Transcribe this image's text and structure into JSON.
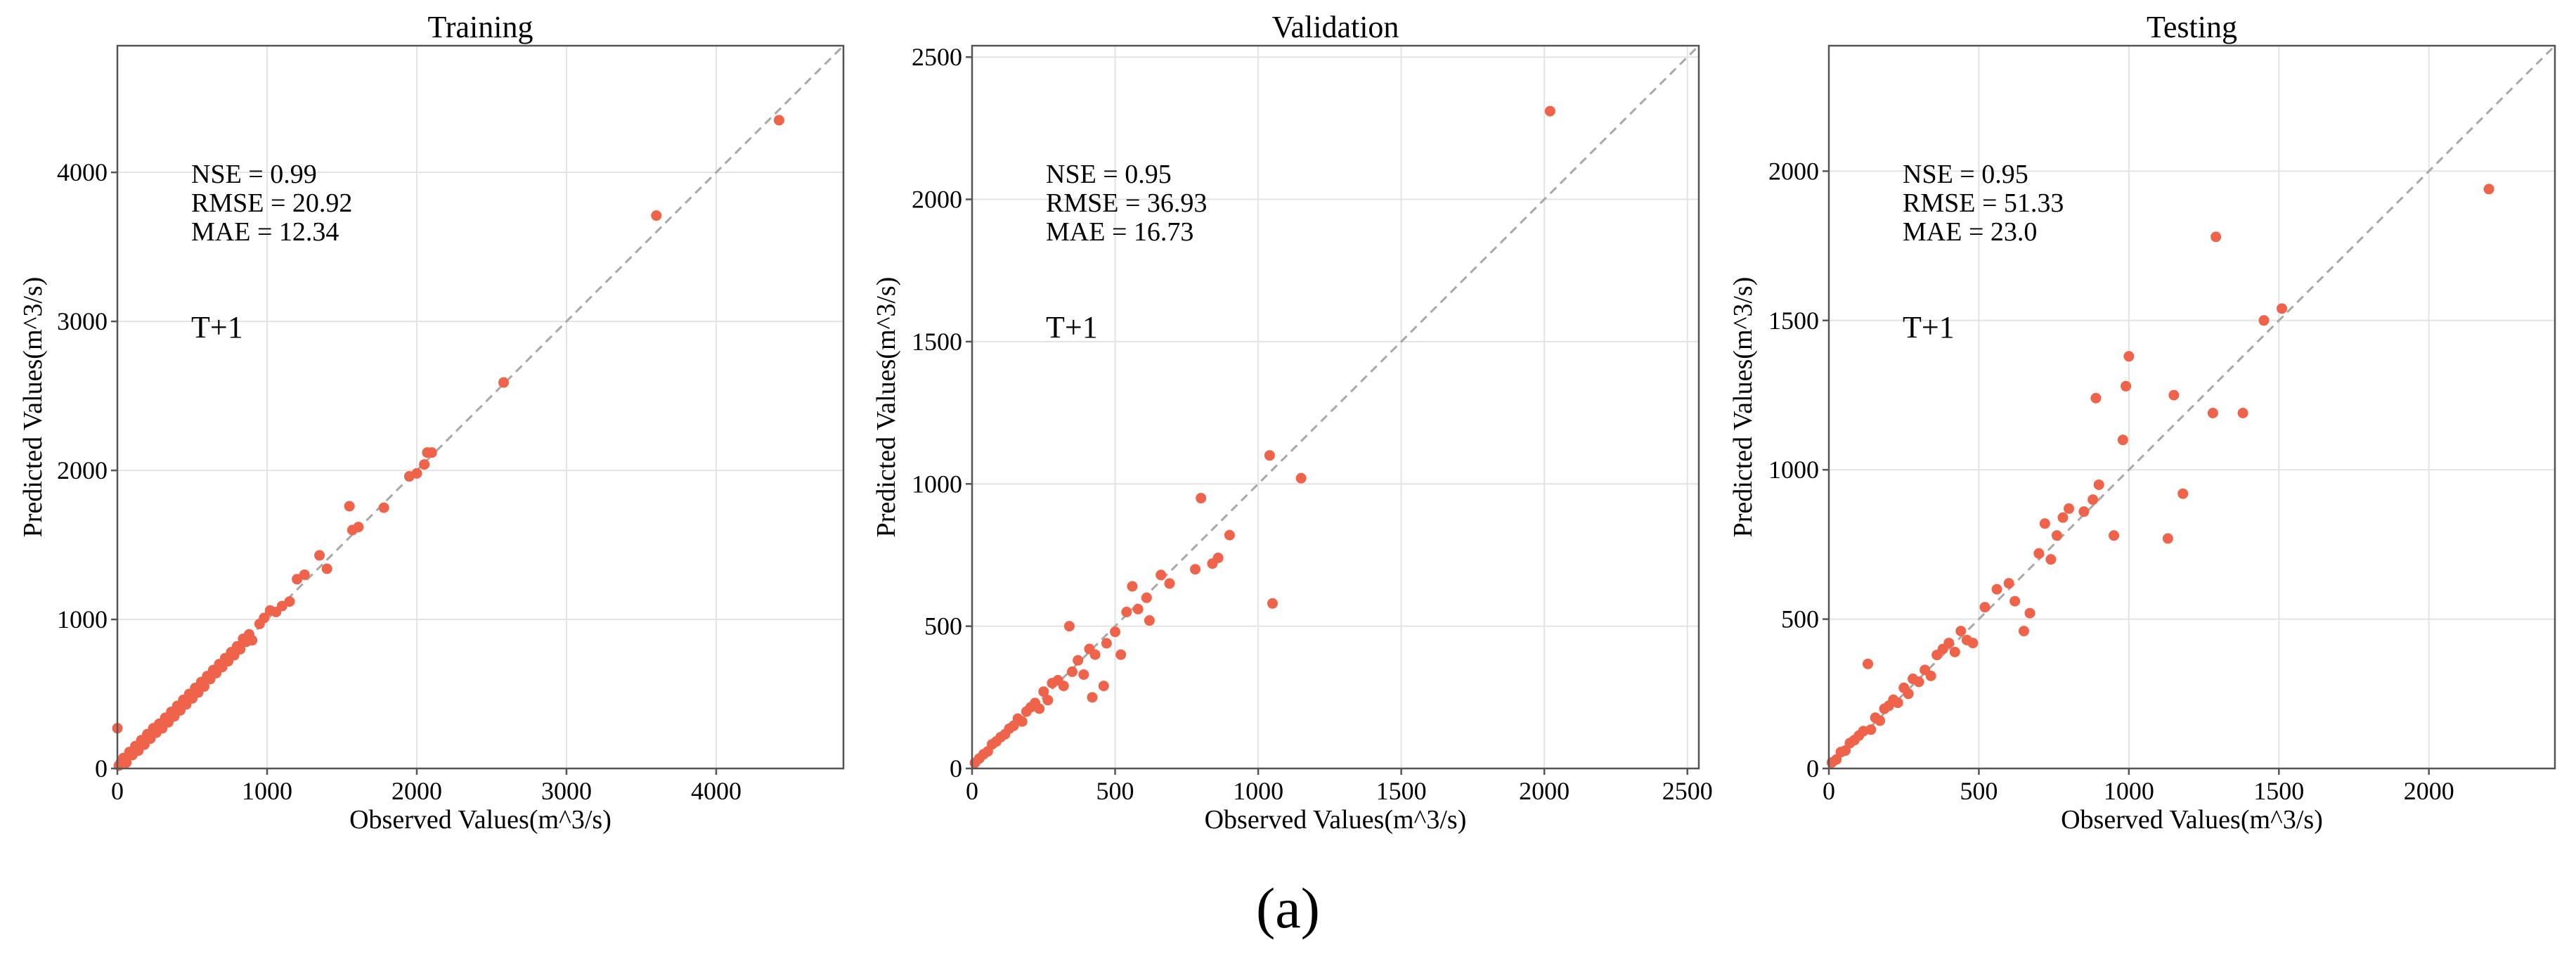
{
  "figure": {
    "caption": "(a)"
  },
  "style": {
    "point_color": "#f0634b",
    "diagonal_color": "#a8a8a8",
    "grid_color": "#e3e3e3",
    "axis_color": "#555555"
  },
  "chart_data": [
    {
      "type": "scatter",
      "title": "Training",
      "xlabel": "Observed Values(m^3/s)",
      "ylabel": "Predicted Values(m^3/s)",
      "xlim": [
        0,
        4850
      ],
      "ylim": [
        0,
        4850
      ],
      "xticks": [
        0,
        1000,
        2000,
        3000,
        4000
      ],
      "yticks": [
        0,
        1000,
        2000,
        3000,
        4000
      ],
      "grid": true,
      "reference_line": "1:1",
      "metrics": [
        "NSE = 0.99",
        "RMSE = 20.92",
        "MAE = 12.34"
      ],
      "horizon": "T+1",
      "points": [
        [
          0,
          270
        ],
        [
          10,
          20
        ],
        [
          25,
          45
        ],
        [
          40,
          70
        ],
        [
          60,
          40
        ],
        [
          80,
          110
        ],
        [
          100,
          90
        ],
        [
          120,
          150
        ],
        [
          140,
          120
        ],
        [
          160,
          190
        ],
        [
          180,
          160
        ],
        [
          200,
          230
        ],
        [
          220,
          200
        ],
        [
          240,
          270
        ],
        [
          260,
          240
        ],
        [
          280,
          300
        ],
        [
          300,
          270
        ],
        [
          320,
          340
        ],
        [
          340,
          310
        ],
        [
          360,
          380
        ],
        [
          380,
          350
        ],
        [
          400,
          420
        ],
        [
          420,
          390
        ],
        [
          440,
          460
        ],
        [
          460,
          430
        ],
        [
          480,
          500
        ],
        [
          500,
          470
        ],
        [
          520,
          540
        ],
        [
          540,
          510
        ],
        [
          560,
          580
        ],
        [
          580,
          550
        ],
        [
          600,
          620
        ],
        [
          620,
          600
        ],
        [
          640,
          660
        ],
        [
          660,
          640
        ],
        [
          680,
          700
        ],
        [
          700,
          680
        ],
        [
          720,
          740
        ],
        [
          740,
          720
        ],
        [
          760,
          780
        ],
        [
          780,
          760
        ],
        [
          800,
          820
        ],
        [
          820,
          800
        ],
        [
          840,
          870
        ],
        [
          860,
          850
        ],
        [
          880,
          900
        ],
        [
          900,
          860
        ],
        [
          950,
          970
        ],
        [
          980,
          1010
        ],
        [
          1020,
          1060
        ],
        [
          1060,
          1050
        ],
        [
          1100,
          1090
        ],
        [
          1150,
          1120
        ],
        [
          1200,
          1270
        ],
        [
          1250,
          1300
        ],
        [
          1350,
          1430
        ],
        [
          1400,
          1340
        ],
        [
          1550,
          1760
        ],
        [
          1570,
          1600
        ],
        [
          1610,
          1620
        ],
        [
          1780,
          1750
        ],
        [
          1950,
          1960
        ],
        [
          2000,
          1980
        ],
        [
          2050,
          2040
        ],
        [
          2070,
          2120
        ],
        [
          2100,
          2120
        ],
        [
          2580,
          2590
        ],
        [
          3600,
          3710
        ],
        [
          4420,
          4350
        ]
      ]
    },
    {
      "type": "scatter",
      "title": "Validation",
      "xlabel": "Observed Values(m^3/s)",
      "ylabel": "Predicted Values(m^3/s)",
      "xlim": [
        0,
        2540
      ],
      "ylim": [
        0,
        2540
      ],
      "xticks": [
        0,
        500,
        1000,
        1500,
        2000,
        2500
      ],
      "yticks": [
        0,
        500,
        1000,
        1500,
        2000,
        2500
      ],
      "grid": true,
      "reference_line": "1:1",
      "metrics": [
        "NSE = 0.95",
        "RMSE = 36.93",
        "MAE = 16.73"
      ],
      "horizon": "T+1",
      "points": [
        [
          10,
          20
        ],
        [
          25,
          35
        ],
        [
          40,
          50
        ],
        [
          55,
          60
        ],
        [
          70,
          85
        ],
        [
          85,
          95
        ],
        [
          100,
          110
        ],
        [
          115,
          120
        ],
        [
          130,
          140
        ],
        [
          145,
          150
        ],
        [
          160,
          175
        ],
        [
          175,
          165
        ],
        [
          190,
          200
        ],
        [
          205,
          215
        ],
        [
          220,
          230
        ],
        [
          235,
          210
        ],
        [
          250,
          270
        ],
        [
          265,
          240
        ],
        [
          280,
          300
        ],
        [
          300,
          310
        ],
        [
          320,
          290
        ],
        [
          340,
          500
        ],
        [
          350,
          340
        ],
        [
          370,
          380
        ],
        [
          390,
          330
        ],
        [
          410,
          420
        ],
        [
          420,
          250
        ],
        [
          430,
          400
        ],
        [
          460,
          290
        ],
        [
          470,
          440
        ],
        [
          500,
          480
        ],
        [
          520,
          400
        ],
        [
          540,
          550
        ],
        [
          560,
          640
        ],
        [
          580,
          560
        ],
        [
          610,
          600
        ],
        [
          620,
          520
        ],
        [
          660,
          680
        ],
        [
          690,
          650
        ],
        [
          780,
          700
        ],
        [
          800,
          950
        ],
        [
          840,
          720
        ],
        [
          860,
          740
        ],
        [
          900,
          820
        ],
        [
          1040,
          1100
        ],
        [
          1050,
          580
        ],
        [
          1150,
          1020
        ],
        [
          2020,
          2310
        ]
      ]
    },
    {
      "type": "scatter",
      "title": "Testing",
      "xlabel": "Observed Values(m^3/s)",
      "ylabel": "Predicted Values(m^3/s)",
      "xlim": [
        0,
        2420
      ],
      "ylim": [
        0,
        2420
      ],
      "xticks": [
        0,
        500,
        1000,
        1500,
        2000
      ],
      "yticks": [
        0,
        500,
        1000,
        1500,
        2000
      ],
      "grid": true,
      "reference_line": "1:1",
      "metrics": [
        "NSE = 0.95",
        "RMSE = 51.33",
        "MAE = 23.0"
      ],
      "horizon": "T+1",
      "points": [
        [
          10,
          20
        ],
        [
          25,
          30
        ],
        [
          40,
          55
        ],
        [
          55,
          60
        ],
        [
          70,
          85
        ],
        [
          85,
          95
        ],
        [
          100,
          110
        ],
        [
          115,
          125
        ],
        [
          130,
          350
        ],
        [
          140,
          130
        ],
        [
          155,
          170
        ],
        [
          170,
          160
        ],
        [
          185,
          200
        ],
        [
          200,
          210
        ],
        [
          215,
          230
        ],
        [
          230,
          220
        ],
        [
          250,
          270
        ],
        [
          265,
          250
        ],
        [
          280,
          300
        ],
        [
          300,
          290
        ],
        [
          320,
          330
        ],
        [
          340,
          310
        ],
        [
          360,
          380
        ],
        [
          380,
          400
        ],
        [
          400,
          420
        ],
        [
          420,
          390
        ],
        [
          440,
          460
        ],
        [
          460,
          430
        ],
        [
          480,
          420
        ],
        [
          520,
          540
        ],
        [
          560,
          600
        ],
        [
          600,
          620
        ],
        [
          620,
          560
        ],
        [
          650,
          460
        ],
        [
          670,
          520
        ],
        [
          700,
          720
        ],
        [
          720,
          820
        ],
        [
          740,
          700
        ],
        [
          760,
          780
        ],
        [
          780,
          840
        ],
        [
          800,
          870
        ],
        [
          850,
          860
        ],
        [
          880,
          900
        ],
        [
          890,
          1240
        ],
        [
          900,
          950
        ],
        [
          950,
          780
        ],
        [
          980,
          1100
        ],
        [
          990,
          1280
        ],
        [
          1000,
          1380
        ],
        [
          1130,
          770
        ],
        [
          1150,
          1250
        ],
        [
          1180,
          920
        ],
        [
          1280,
          1190
        ],
        [
          1290,
          1780
        ],
        [
          1380,
          1190
        ],
        [
          1450,
          1500
        ],
        [
          1510,
          1540
        ],
        [
          2200,
          1940
        ]
      ]
    }
  ]
}
